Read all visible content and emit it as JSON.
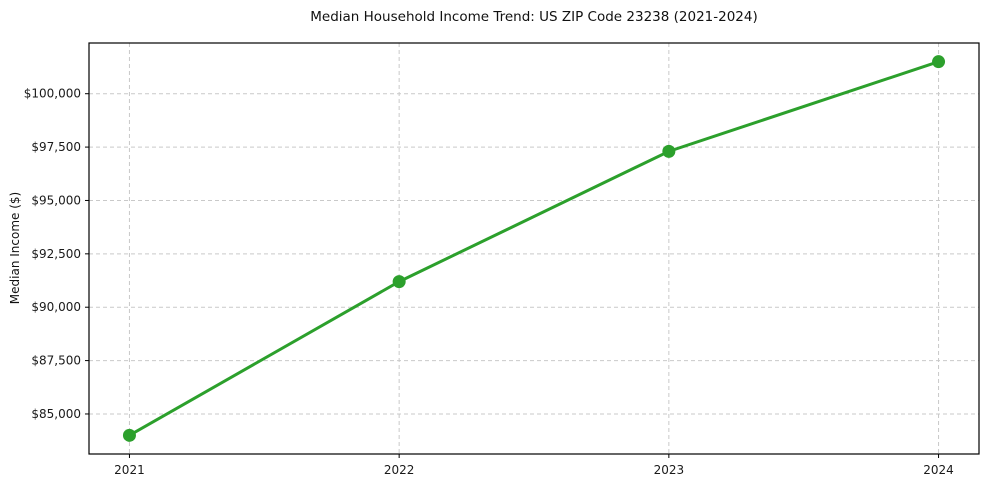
{
  "page": {
    "background": "#ffffff"
  },
  "chart_data": {
    "type": "line",
    "title": "Median Household Income Trend: US ZIP Code 23238 (2021-2024)",
    "xlabel": "",
    "ylabel": "Median Income ($)",
    "x": [
      2021,
      2022,
      2023,
      2024
    ],
    "values": [
      84000,
      91200,
      97300,
      101500
    ],
    "xtick_labels": [
      "2021",
      "2022",
      "2023",
      "2024"
    ],
    "yticks": [
      85000,
      87500,
      90000,
      92500,
      95000,
      97500,
      100000
    ],
    "ytick_labels": [
      "$85,000",
      "$87,500",
      "$90,000",
      "$92,500",
      "$95,000",
      "$97,500",
      "$100,000"
    ],
    "xlim": [
      2020.85,
      2024.15
    ],
    "ylim": [
      83125,
      102375
    ],
    "grid": true,
    "grid_style": "dashed",
    "legend": "none",
    "colors": {
      "line": "#2ca02c",
      "marker": "#2ca02c",
      "grid": "#c9c9c9",
      "spine": "#000000",
      "text": "#1a1a1a"
    }
  }
}
